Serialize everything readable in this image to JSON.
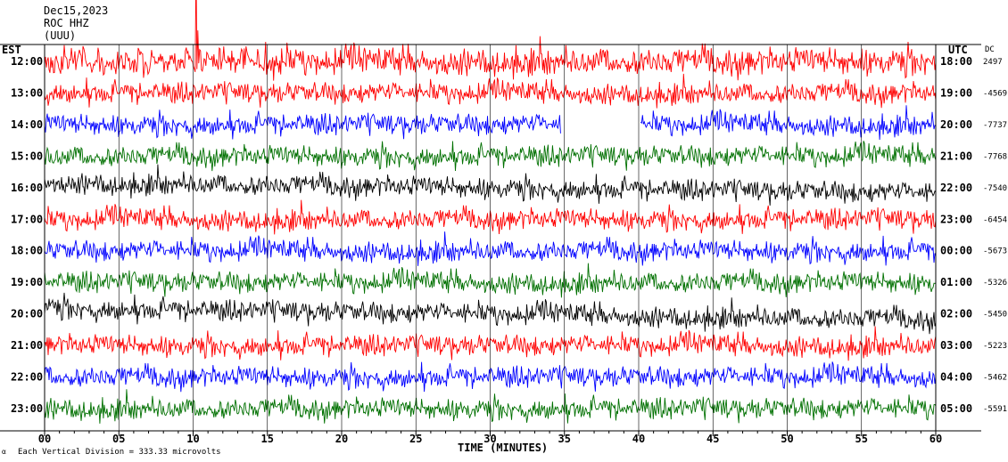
{
  "header": {
    "date": "Dec15,2023",
    "station": "ROC HHZ",
    "units": "(UUU)"
  },
  "footer": {
    "scale_note": "Each Vertical Division =  333.33 microvolts"
  },
  "colors": {
    "trace_cycle": [
      "#000000",
      "#ff0000",
      "#0000ff",
      "#007000"
    ],
    "grid": "#000000",
    "background": "#ffffff"
  },
  "chart_data": {
    "type": "line",
    "title": "",
    "xlabel": "TIME (MINUTES)",
    "left_axis_label": "EST",
    "right_axis_label": "UTC",
    "offset_column_label": "DC",
    "x_range": [
      0,
      60
    ],
    "x_ticks": [
      "00",
      "05",
      "10",
      "15",
      "20",
      "25",
      "30",
      "35",
      "40",
      "45",
      "50",
      "55",
      "60"
    ],
    "vertical_grid_every_minutes": 5,
    "rows": [
      {
        "est": "12:00",
        "utc": "18:00",
        "dc": "2497",
        "color": "#ff0000"
      },
      {
        "est": "13:00",
        "utc": "19:00",
        "dc": "-4569",
        "color": "#ff0000"
      },
      {
        "est": "14:00",
        "utc": "20:00",
        "dc": "-7737",
        "color": "#0000ff"
      },
      {
        "est": "15:00",
        "utc": "21:00",
        "dc": "-7768",
        "color": "#007000"
      },
      {
        "est": "16:00",
        "utc": "22:00",
        "dc": "-7540",
        "color": "#000000"
      },
      {
        "est": "17:00",
        "utc": "23:00",
        "dc": "-6454",
        "color": "#ff0000"
      },
      {
        "est": "18:00",
        "utc": "00:00",
        "dc": "-5673",
        "color": "#0000ff"
      },
      {
        "est": "19:00",
        "utc": "01:00",
        "dc": "-5326",
        "color": "#007000"
      },
      {
        "est": "20:00",
        "utc": "02:00",
        "dc": "-5450",
        "color": "#000000"
      },
      {
        "est": "21:00",
        "utc": "03:00",
        "dc": "-5223",
        "color": "#ff0000"
      },
      {
        "est": "22:00",
        "utc": "04:00",
        "dc": "-5462",
        "color": "#0000ff"
      },
      {
        "est": "23:00",
        "utc": "05:00",
        "dc": "-5591",
        "color": "#007000"
      }
    ],
    "data_gaps": [
      {
        "row": "14:00",
        "from_minute": 34.8,
        "to_minute": 40.1
      }
    ],
    "grid": true
  }
}
